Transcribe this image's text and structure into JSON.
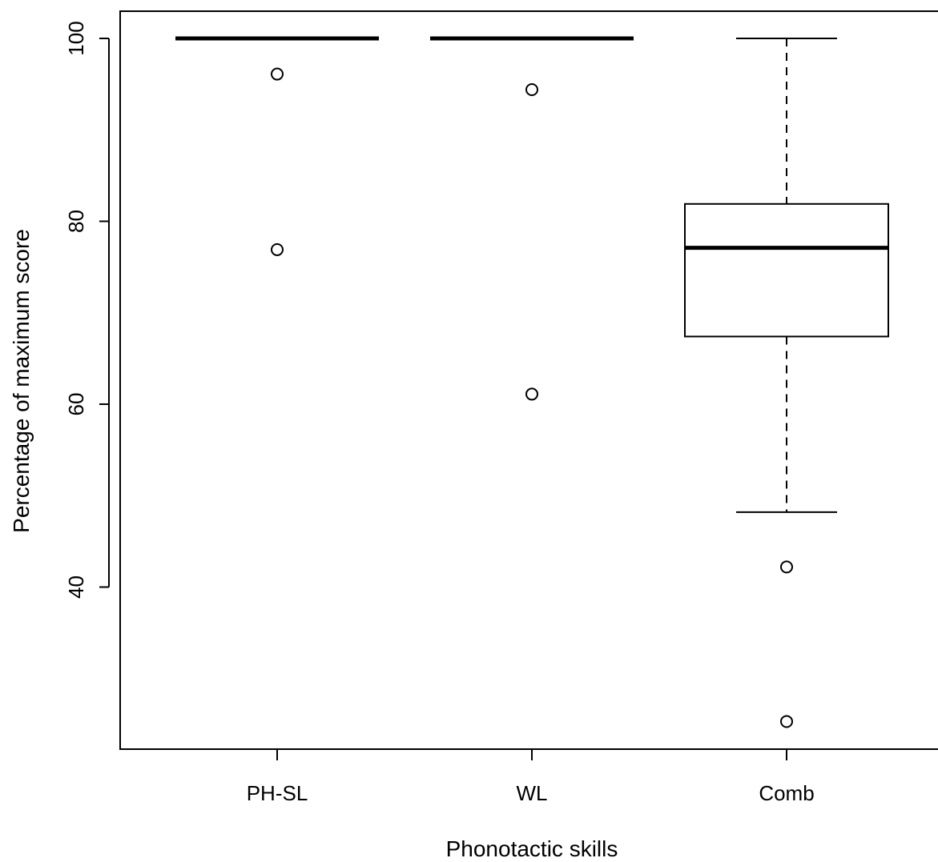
{
  "chart_data": {
    "type": "boxplot",
    "title": "",
    "xlabel": "Phonotactic skills",
    "ylabel": "Percentage of maximum score",
    "ylim": [
      22,
      103
    ],
    "yticks": [
      40,
      60,
      80,
      100
    ],
    "ytick_labels": [
      "40",
      "60",
      "80",
      "100"
    ],
    "grid": false,
    "categories": [
      "PH-SL",
      "WL",
      "Comb"
    ],
    "boxes": [
      {
        "category": "PH-SL",
        "whisker_low": 100,
        "q1": 100,
        "median": 100,
        "q3": 100,
        "whisker_high": 100,
        "outliers": [
          96.1,
          76.9
        ]
      },
      {
        "category": "WL",
        "whisker_low": 100,
        "q1": 100,
        "median": 100,
        "q3": 100,
        "whisker_high": 100,
        "outliers": [
          94.4,
          61.1
        ]
      },
      {
        "category": "Comb",
        "whisker_low": 48.2,
        "q1": 67.4,
        "median": 77.1,
        "q3": 81.9,
        "whisker_high": 100,
        "outliers": [
          42.2,
          25.3
        ]
      }
    ],
    "colors": {
      "stroke": "#000000",
      "background": "#ffffff"
    }
  }
}
